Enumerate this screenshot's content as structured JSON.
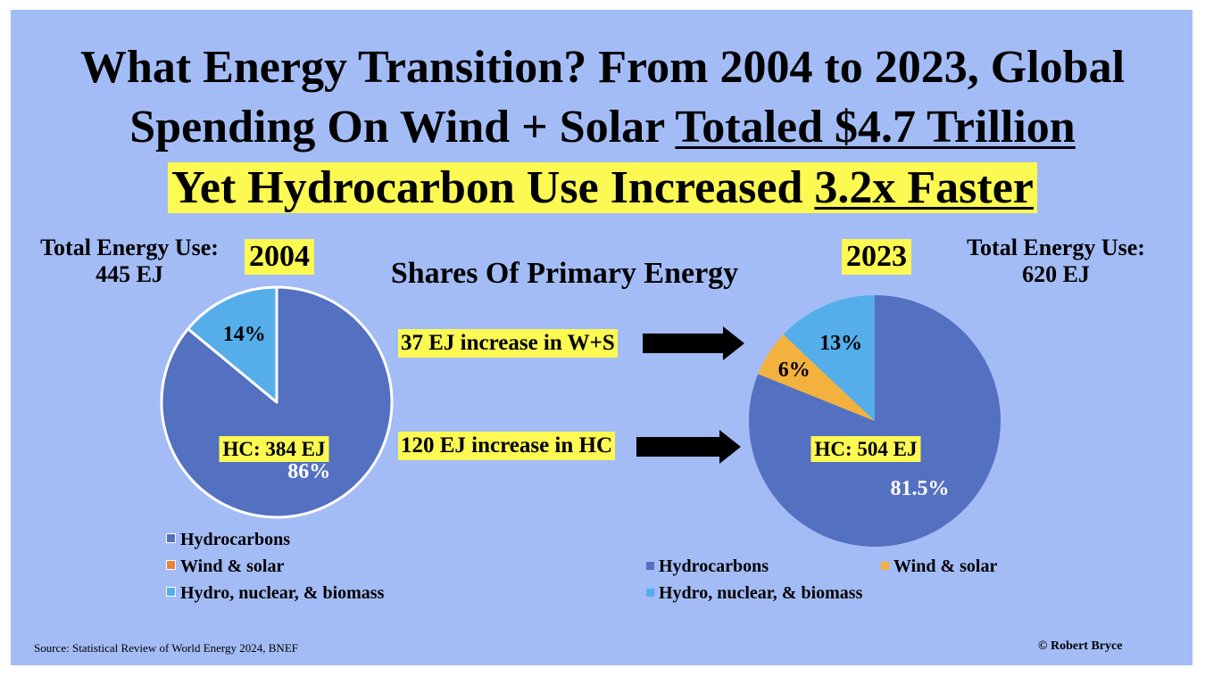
{
  "title": {
    "line1": "What Energy Transition? From 2004 to 2023, Global",
    "line2_pre": "Spending On Wind + Solar ",
    "line2_ul": "Totaled $4.7 Trillion",
    "line3_pre": "Yet Hydrocarbon Use Increased ",
    "line3_ul": "3.2x Faster"
  },
  "subtitle": "Shares Of Primary Energy",
  "left": {
    "total_label": "Total Energy Use:",
    "total_value": "445 EJ",
    "year": "2004"
  },
  "right": {
    "total_label": "Total Energy Use:",
    "total_value": "620 EJ",
    "year": "2023"
  },
  "arrows": [
    {
      "label": "37 EJ increase in W+S"
    },
    {
      "label": "120 EJ increase in HC"
    }
  ],
  "colors": {
    "background": "#a3bcf6",
    "hydrocarbons": "#5470c0",
    "wind_solar": "#f3b13d",
    "hydro_nuclear_biomass": "#55aeea",
    "highlight": "#fbf952"
  },
  "chart_data": [
    {
      "type": "pie",
      "year": "2004",
      "slices": [
        {
          "name": "Hydrocarbons",
          "value": 86,
          "label": "86%"
        },
        {
          "name": "Wind & solar",
          "value": 0,
          "label": ""
        },
        {
          "name": "Hydro, nuclear, & biomass",
          "value": 14,
          "label": "14%"
        }
      ],
      "annotation": "HC: 384 EJ",
      "legend": [
        "Hydrocarbons",
        "Wind & solar",
        "Hydro, nuclear, & biomass"
      ],
      "legend_placement": "bottom"
    },
    {
      "type": "pie",
      "year": "2023",
      "slices": [
        {
          "name": "Hydrocarbons",
          "value": 81.5,
          "label": "81.5%"
        },
        {
          "name": "Wind & solar",
          "value": 6,
          "label": "6%"
        },
        {
          "name": "Hydro, nuclear, & biomass",
          "value": 13,
          "label": "13%"
        }
      ],
      "annotation": "HC: 504 EJ",
      "legend": [
        "Hydrocarbons",
        "Wind & solar",
        "Hydro, nuclear, & biomass"
      ],
      "legend_placement": "bottom"
    }
  ],
  "footer": {
    "source": "Source: Statistical Review of World Energy 2024, BNEF",
    "credit": "© Robert Bryce"
  }
}
